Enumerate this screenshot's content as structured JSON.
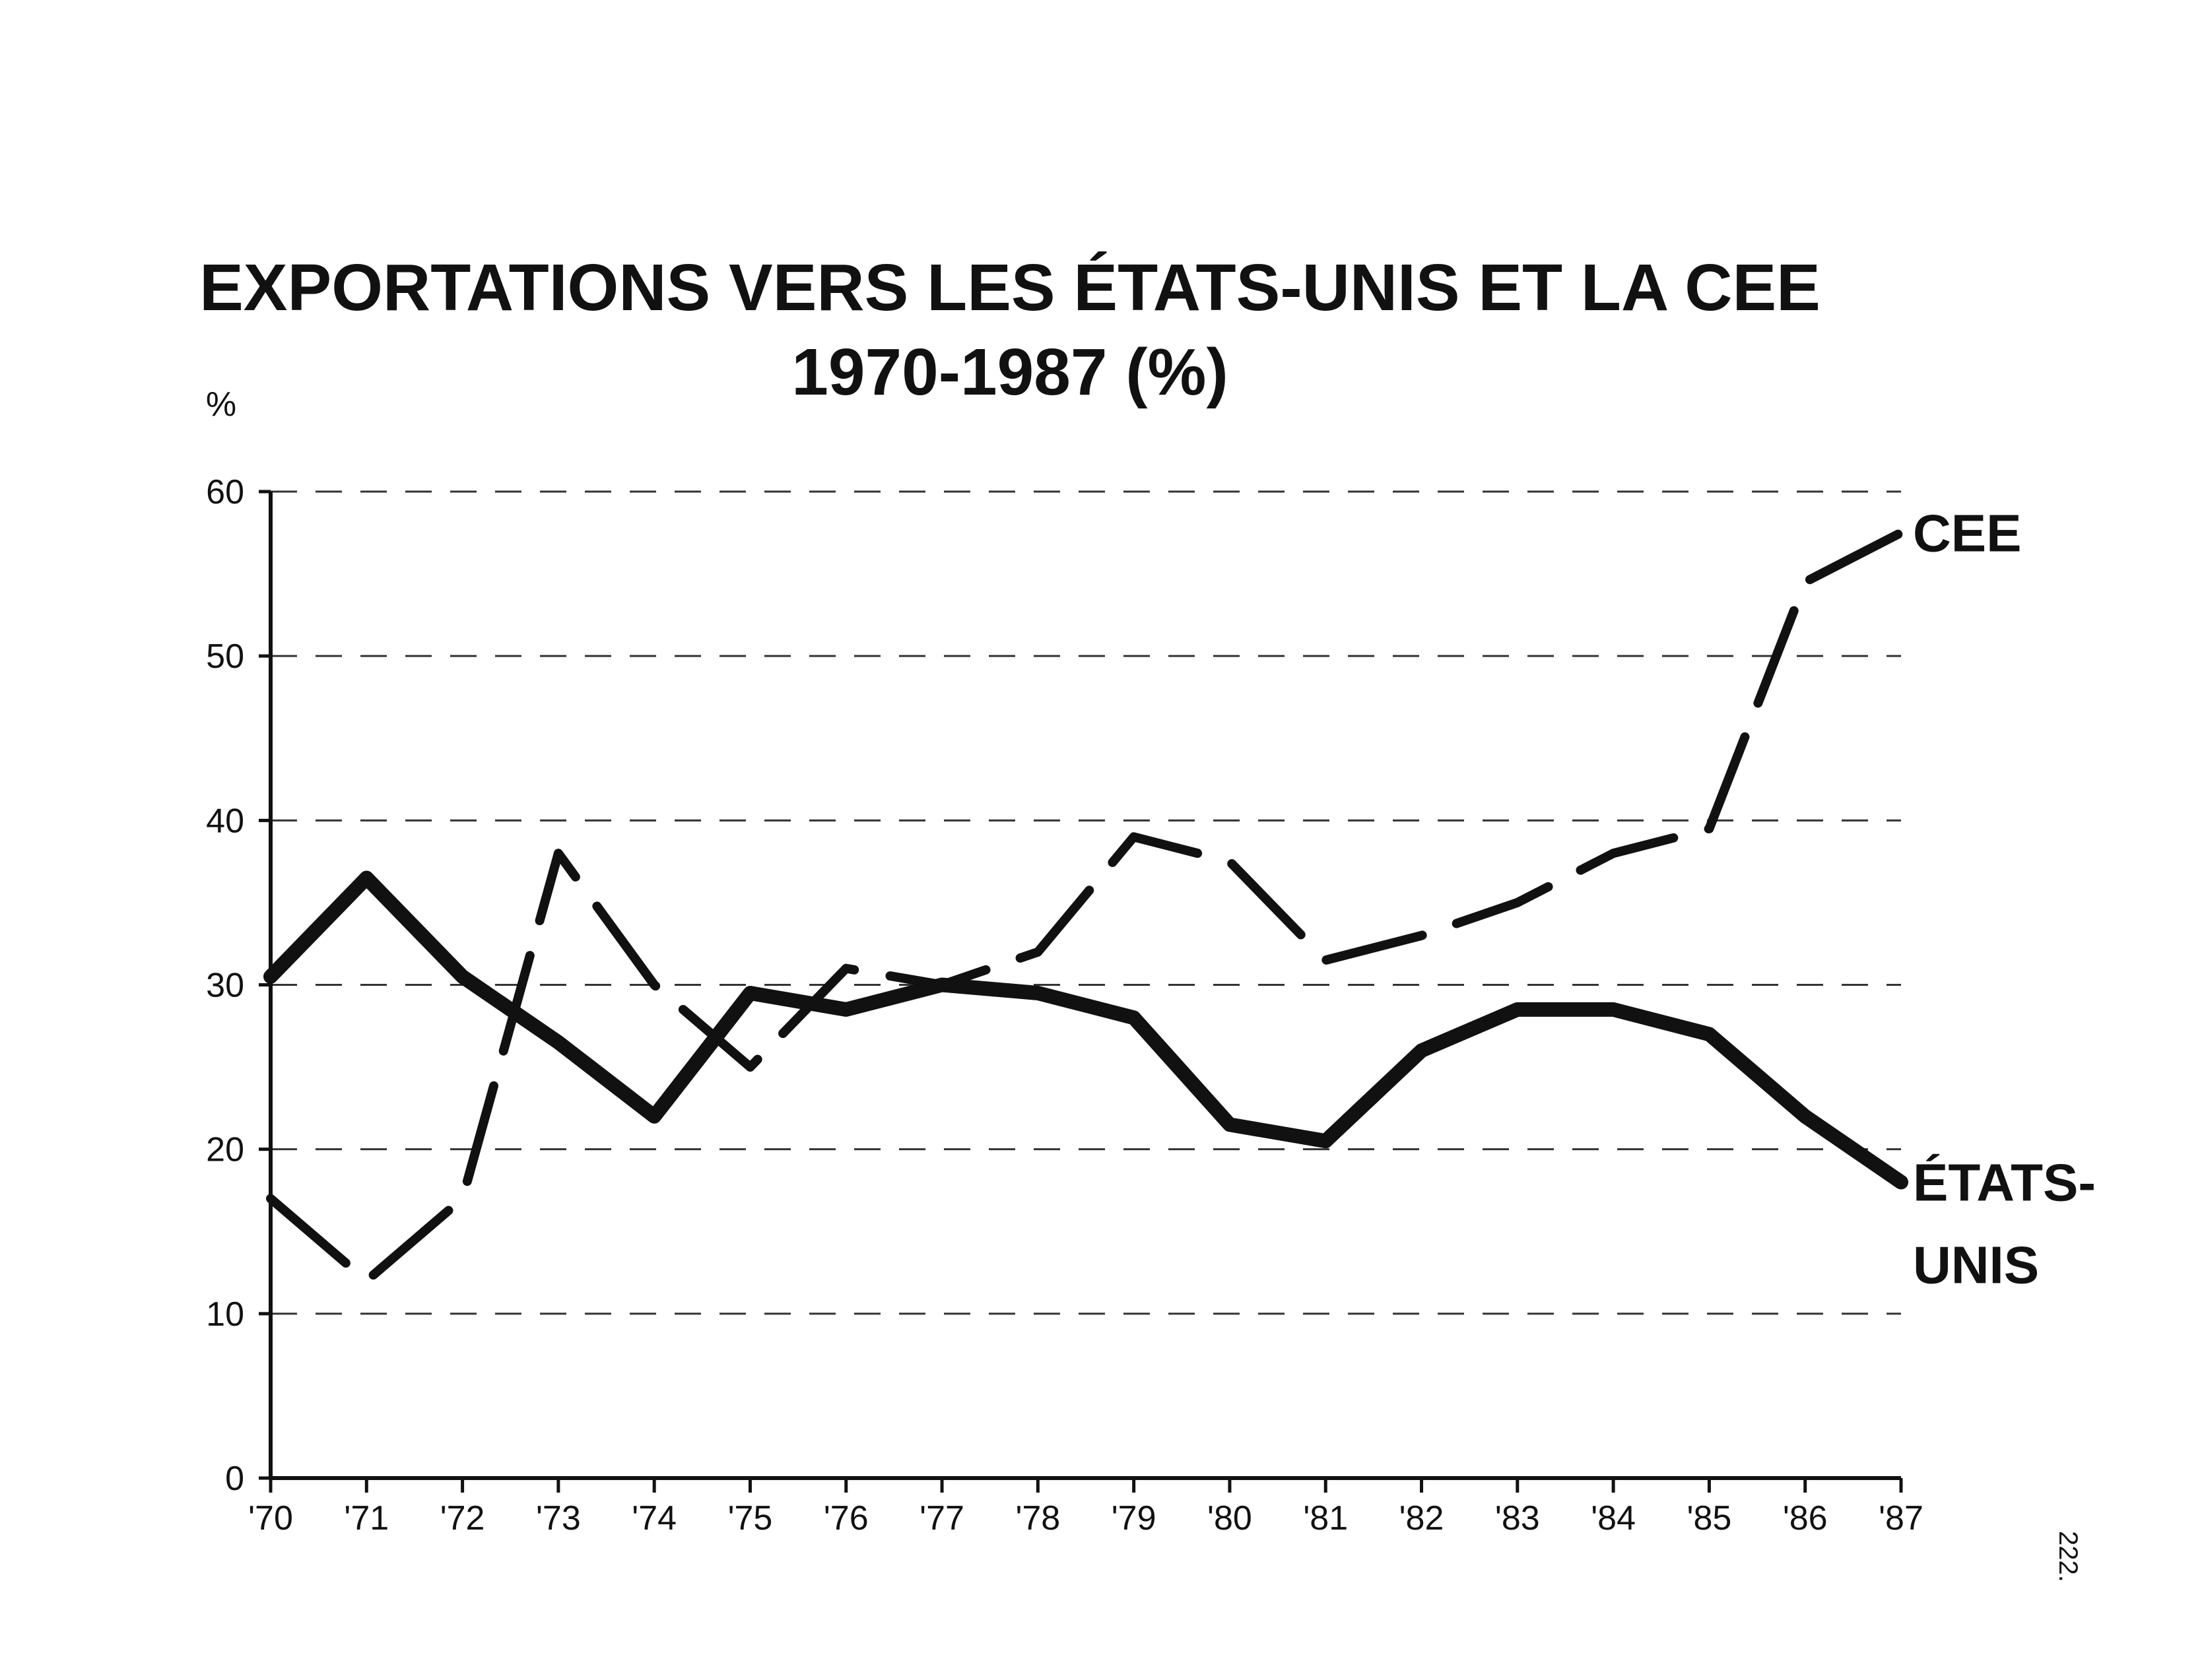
{
  "chart_data": {
    "type": "line",
    "title": "EXPORTATIONS VERS LES ÉTATS-UNIS ET LA CEE",
    "subtitle": "1970-1987 (%)",
    "ylabel": "%",
    "xlabel": "",
    "ylim": [
      0,
      60
    ],
    "yticks": [
      "0",
      "10",
      "20",
      "30",
      "40",
      "50",
      "60"
    ],
    "categories": [
      "'70",
      "'71",
      "'72",
      "'73",
      "'74",
      "'75",
      "'76",
      "'77",
      "'78",
      "'79",
      "'80",
      "'81",
      "'82",
      "'83",
      "'84",
      "'85",
      "'86",
      "'87"
    ],
    "grid": "dashed horizontal",
    "series": [
      {
        "name": "CEE",
        "label_lines": [
          "CEE"
        ],
        "values": [
          17,
          12,
          17,
          38,
          30,
          25,
          31,
          30,
          32,
          39,
          37.5,
          31.5,
          33,
          35,
          38,
          39.5,
          54.5,
          57.5
        ],
        "style": "dashed-heavy"
      },
      {
        "name": "ÉTATS-UNIS",
        "label_lines": [
          "ÉTATS-",
          "UNIS"
        ],
        "values": [
          30.5,
          36.5,
          30.5,
          26.5,
          22,
          29.5,
          28.5,
          30,
          29.5,
          28,
          21.5,
          20.5,
          26,
          28.5,
          28.5,
          27,
          22,
          18
        ],
        "style": "solid"
      }
    ]
  },
  "page_number": "222."
}
